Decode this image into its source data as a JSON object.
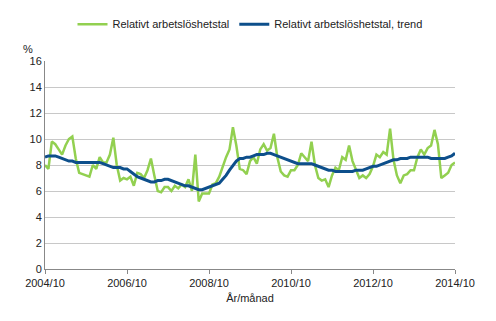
{
  "chart_data": {
    "type": "line",
    "y_label": "%",
    "x_label": "År/månad",
    "categories": [
      "2004/10",
      null,
      null,
      null,
      null,
      null,
      null,
      null,
      null,
      null,
      null,
      null,
      null,
      null,
      null,
      null,
      null,
      null,
      null,
      null,
      null,
      null,
      null,
      null,
      "2006/10",
      null,
      null,
      null,
      null,
      null,
      null,
      null,
      null,
      null,
      null,
      null,
      null,
      null,
      null,
      null,
      null,
      null,
      null,
      null,
      null,
      null,
      null,
      null,
      "2008/10",
      null,
      null,
      null,
      null,
      null,
      null,
      null,
      null,
      null,
      null,
      null,
      null,
      null,
      null,
      null,
      null,
      null,
      null,
      null,
      null,
      null,
      null,
      null,
      "2010/10",
      null,
      null,
      null,
      null,
      null,
      null,
      null,
      null,
      null,
      null,
      null,
      null,
      null,
      null,
      null,
      null,
      null,
      null,
      null,
      null,
      null,
      null,
      null,
      "2012/10",
      null,
      null,
      null,
      null,
      null,
      null,
      null,
      null,
      null,
      null,
      null,
      null,
      null,
      null,
      null,
      null,
      null,
      null,
      null,
      null,
      null,
      null,
      null,
      "2014/10"
    ],
    "series": [
      {
        "name": "Relativt arbetslöshetstal",
        "color": "#92d050",
        "values": [
          8.0,
          7.7,
          9.8,
          9.6,
          9.2,
          8.8,
          9.5,
          10.0,
          10.2,
          8.5,
          7.4,
          7.3,
          7.2,
          7.1,
          8.0,
          7.7,
          8.6,
          8.2,
          8.2,
          8.8,
          10.1,
          8.0,
          6.8,
          7.0,
          6.9,
          7.1,
          6.4,
          7.4,
          7.3,
          7.0,
          7.6,
          8.5,
          7.2,
          6.0,
          5.9,
          6.3,
          6.3,
          6.0,
          6.4,
          6.2,
          6.5,
          6.3,
          6.9,
          6.0,
          8.8,
          5.2,
          5.8,
          5.8,
          5.8,
          6.5,
          6.6,
          7.1,
          7.9,
          8.6,
          9.2,
          10.9,
          9.5,
          7.7,
          7.6,
          7.3,
          8.3,
          8.6,
          8.1,
          9.2,
          9.6,
          9.1,
          9.3,
          10.4,
          8.6,
          7.5,
          7.2,
          7.1,
          7.6,
          7.6,
          8.0,
          8.9,
          8.6,
          8.3,
          9.8,
          8.0,
          7.0,
          6.8,
          6.9,
          6.3,
          7.2,
          7.8,
          7.6,
          8.6,
          8.4,
          9.5,
          8.3,
          7.6,
          7.0,
          7.2,
          7.0,
          7.3,
          7.9,
          8.8,
          8.6,
          9.0,
          8.8,
          10.8,
          8.4,
          7.2,
          6.6,
          7.2,
          7.3,
          7.6,
          7.6,
          8.6,
          9.2,
          8.8,
          9.3,
          9.5,
          10.7,
          9.6,
          7.0,
          7.2,
          7.4,
          8.0,
          8.2
        ]
      },
      {
        "name": "Relativt arbetslöshetstal, trend",
        "color": "#0d4f8b",
        "values": [
          8.6,
          8.7,
          8.7,
          8.7,
          8.6,
          8.5,
          8.4,
          8.3,
          8.3,
          8.2,
          8.2,
          8.2,
          8.2,
          8.2,
          8.2,
          8.2,
          8.2,
          8.1,
          8.0,
          7.9,
          7.8,
          7.8,
          7.8,
          7.7,
          7.7,
          7.5,
          7.3,
          7.1,
          7.0,
          6.9,
          6.8,
          6.7,
          6.7,
          6.8,
          6.8,
          6.9,
          6.9,
          6.8,
          6.7,
          6.6,
          6.5,
          6.4,
          6.4,
          6.3,
          6.2,
          6.1,
          6.1,
          6.2,
          6.3,
          6.4,
          6.5,
          6.6,
          6.9,
          7.2,
          7.6,
          8.0,
          8.3,
          8.5,
          8.5,
          8.6,
          8.6,
          8.7,
          8.8,
          8.8,
          8.8,
          8.9,
          8.9,
          8.8,
          8.7,
          8.6,
          8.5,
          8.4,
          8.3,
          8.2,
          8.1,
          8.1,
          8.1,
          8.1,
          8.1,
          8.0,
          7.9,
          7.8,
          7.7,
          7.6,
          7.6,
          7.5,
          7.5,
          7.5,
          7.5,
          7.5,
          7.5,
          7.6,
          7.6,
          7.6,
          7.7,
          7.8,
          7.9,
          7.9,
          8.0,
          8.1,
          8.2,
          8.3,
          8.4,
          8.4,
          8.5,
          8.5,
          8.5,
          8.6,
          8.6,
          8.6,
          8.6,
          8.6,
          8.6,
          8.5,
          8.5,
          8.5,
          8.5,
          8.5,
          8.6,
          8.7,
          8.9
        ]
      }
    ],
    "ylim": [
      0,
      16
    ],
    "yticks": [
      0,
      2,
      4,
      6,
      8,
      10,
      12,
      14,
      16
    ],
    "grid": true,
    "legend": "top"
  }
}
